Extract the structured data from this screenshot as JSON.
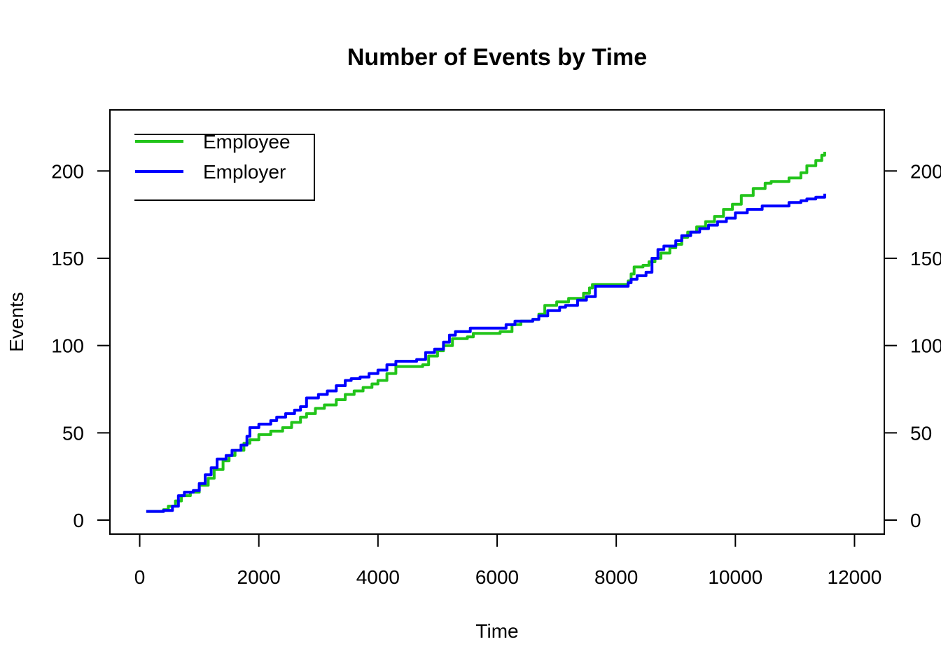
{
  "chart_data": {
    "type": "line",
    "title": "Number of Events by Time",
    "xlabel": "Time",
    "ylabel": "Events",
    "xlim": [
      -500,
      12500
    ],
    "ylim": [
      -8,
      235
    ],
    "x_ticks": [
      0,
      2000,
      4000,
      6000,
      8000,
      10000,
      12000
    ],
    "x_tick_labels": [
      "0",
      "2000",
      "4000",
      "6000",
      "8000",
      "10000",
      "12000"
    ],
    "y_ticks": [
      0,
      50,
      100,
      150,
      200
    ],
    "y_tick_labels": [
      "0",
      "50",
      "100",
      "150",
      "200"
    ],
    "right_axis": true,
    "grid": false,
    "legend_position": "top-left",
    "series": [
      {
        "name": "Employee",
        "color": "#22c41a",
        "x": [
          110,
          400,
          480,
          600,
          700,
          850,
          1000,
          1150,
          1250,
          1400,
          1500,
          1600,
          1750,
          1850,
          2000,
          2200,
          2400,
          2550,
          2700,
          2800,
          2950,
          3100,
          3300,
          3450,
          3600,
          3750,
          3900,
          4000,
          4150,
          4300,
          4500,
          4750,
          4850,
          5000,
          5100,
          5250,
          5500,
          5600,
          6050,
          6250,
          6400,
          6600,
          6700,
          6800,
          7000,
          7200,
          7450,
          7550,
          7600,
          8200,
          8250,
          8300,
          8450,
          8550,
          8650,
          8750,
          8900,
          9000,
          9100,
          9200,
          9350,
          9500,
          9650,
          9800,
          9950,
          10100,
          10300,
          10500,
          10600,
          10900,
          11100,
          11200,
          11350,
          11450,
          11500
        ],
        "y": [
          5,
          6,
          8,
          11,
          14,
          16,
          20,
          24,
          29,
          34,
          37,
          40,
          44,
          46,
          49,
          51,
          53,
          56,
          59,
          61,
          64,
          66,
          69,
          72,
          74,
          76,
          78,
          80,
          84,
          88,
          88,
          89,
          94,
          97,
          100,
          104,
          105,
          107,
          108,
          112,
          114,
          115,
          118,
          123,
          125,
          127,
          130,
          133,
          135,
          137,
          141,
          145,
          146,
          148,
          150,
          153,
          156,
          158,
          162,
          165,
          168,
          171,
          174,
          178,
          181,
          186,
          190,
          193,
          194,
          196,
          199,
          203,
          206,
          209,
          211
        ]
      },
      {
        "name": "Employer",
        "color": "#0000ff",
        "x": [
          110,
          400,
          550,
          650,
          750,
          900,
          1000,
          1100,
          1200,
          1300,
          1450,
          1550,
          1700,
          1800,
          1850,
          2000,
          2200,
          2300,
          2450,
          2600,
          2700,
          2800,
          3000,
          3150,
          3300,
          3450,
          3550,
          3700,
          3850,
          4000,
          4150,
          4300,
          4650,
          4800,
          4950,
          5100,
          5200,
          5300,
          5550,
          6150,
          6300,
          6600,
          6700,
          6850,
          7050,
          7150,
          7350,
          7500,
          7650,
          8200,
          8250,
          8350,
          8500,
          8600,
          8700,
          8800,
          9000,
          9100,
          9250,
          9400,
          9550,
          9700,
          9850,
          10000,
          10200,
          10450,
          10900,
          11100,
          11200,
          11350,
          11500
        ],
        "y": [
          5,
          5.5,
          8,
          14,
          16,
          17,
          21,
          26,
          30,
          35,
          37,
          40,
          43,
          48,
          53,
          55,
          57,
          59,
          61,
          63,
          65,
          70,
          72,
          74,
          77,
          80,
          81,
          82,
          84,
          86,
          89,
          91,
          92,
          96,
          98,
          102,
          106,
          108,
          110,
          112,
          114,
          115,
          117,
          120,
          122,
          123,
          126,
          128,
          134,
          136,
          138,
          140,
          142,
          150,
          155,
          157,
          160,
          163,
          165,
          167,
          169,
          171,
          173,
          176,
          178,
          180,
          182,
          183,
          184,
          185,
          187
        ]
      }
    ]
  }
}
